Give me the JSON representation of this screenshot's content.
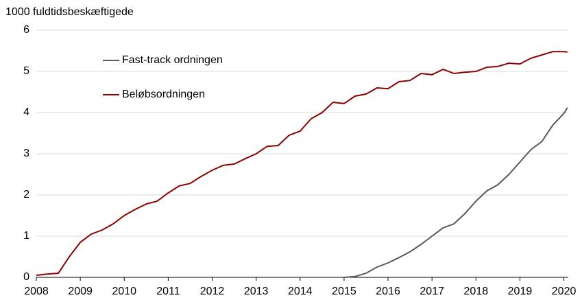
{
  "chart_data": {
    "type": "line",
    "title": "1000 fuldtidsbeskæftigede",
    "x": [
      2008,
      2008.25,
      2008.5,
      2008.75,
      2009,
      2009.25,
      2009.5,
      2009.75,
      2010,
      2010.25,
      2010.5,
      2010.75,
      2011,
      2011.25,
      2011.5,
      2011.75,
      2012,
      2012.25,
      2012.5,
      2012.75,
      2013,
      2013.25,
      2013.5,
      2013.75,
      2014,
      2014.25,
      2014.5,
      2014.75,
      2015,
      2015.25,
      2015.5,
      2015.75,
      2016,
      2016.25,
      2016.5,
      2016.75,
      2017,
      2017.25,
      2017.5,
      2017.75,
      2018,
      2018.25,
      2018.5,
      2018.75,
      2019,
      2019.25,
      2019.5,
      2019.75,
      2020,
      2020.08
    ],
    "series": [
      {
        "name": "Fast-track ordningen",
        "color": "#595959",
        "values": [
          null,
          null,
          null,
          null,
          null,
          null,
          null,
          null,
          null,
          null,
          null,
          null,
          null,
          null,
          null,
          null,
          null,
          null,
          null,
          null,
          null,
          null,
          null,
          null,
          null,
          null,
          null,
          null,
          0,
          0.02,
          0.1,
          0.25,
          0.35,
          0.48,
          0.62,
          0.8,
          1.0,
          1.2,
          1.3,
          1.55,
          1.85,
          2.1,
          2.25,
          2.5,
          2.8,
          3.1,
          3.3,
          3.7,
          3.98,
          4.12
        ]
      },
      {
        "name": "Beløbsordningen",
        "color": "#8b0000",
        "values": [
          0.05,
          0.08,
          0.1,
          0.5,
          0.85,
          1.05,
          1.15,
          1.3,
          1.5,
          1.65,
          1.78,
          1.85,
          2.05,
          2.22,
          2.28,
          2.45,
          2.6,
          2.72,
          2.75,
          2.88,
          3.0,
          3.18,
          3.2,
          3.45,
          3.55,
          3.85,
          4.0,
          4.25,
          4.22,
          4.4,
          4.45,
          4.6,
          4.58,
          4.75,
          4.78,
          4.95,
          4.92,
          5.05,
          4.95,
          4.98,
          5.0,
          5.1,
          5.12,
          5.2,
          5.18,
          5.32,
          5.4,
          5.48,
          5.48,
          5.47
        ]
      }
    ],
    "xlim": [
      2008,
      2020.1
    ],
    "xticks": [
      2008,
      2009,
      2010,
      2011,
      2012,
      2013,
      2014,
      2015,
      2016,
      2017,
      2018,
      2019,
      2020
    ],
    "ylim": [
      0,
      6
    ],
    "yticks": [
      0,
      1,
      2,
      3,
      4,
      5,
      6
    ],
    "grid": true,
    "legend": "upper left"
  }
}
